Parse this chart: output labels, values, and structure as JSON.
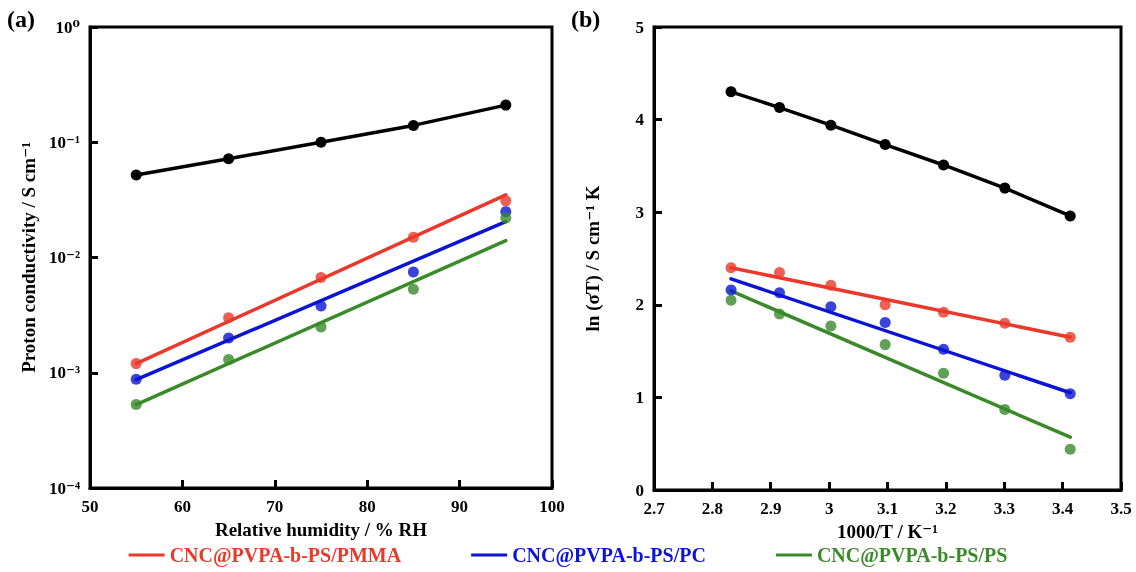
{
  "chart_data": [
    {
      "type": "scatter",
      "title": "(a)",
      "xlabel": "Relative humidity / % RH",
      "ylabel": "Proton conductivity / S cm⁻¹",
      "log": "y",
      "marker": "circle",
      "grid": false,
      "xlim": [
        50,
        100
      ],
      "xticks": [
        50,
        60,
        70,
        80,
        90,
        100
      ],
      "ylim": [
        0.0001,
        1
      ],
      "yticks": [
        {
          "value": 0.0001,
          "label": "10⁻⁴"
        },
        {
          "value": 0.001,
          "label": "10⁻³"
        },
        {
          "value": 0.01,
          "label": "10⁻²"
        },
        {
          "value": 0.1,
          "label": "10⁻¹"
        },
        {
          "value": 1,
          "label": "10⁰"
        }
      ],
      "x": [
        55,
        65,
        75,
        85,
        95
      ],
      "series": [
        {
          "type": "line",
          "color": "#000000",
          "values": [
            0.052,
            0.072,
            0.1,
            0.14,
            0.21
          ]
        },
        {
          "color": "#e8392b",
          "values": [
            0.0012,
            0.003,
            0.0067,
            0.015,
            0.031
          ]
        },
        {
          "type": "line",
          "marker": "none",
          "color": "#e8392b",
          "x": [
            55,
            95
          ],
          "values": [
            0.0012,
            0.035
          ]
        },
        {
          "color": "#0a14d2",
          "values": [
            0.00088,
            0.002,
            0.0038,
            0.0075,
            0.025
          ]
        },
        {
          "type": "line",
          "marker": "none",
          "color": "#0a14d2",
          "x": [
            55,
            95
          ],
          "values": [
            0.00087,
            0.0205
          ]
        },
        {
          "color": "#3a8a2a",
          "values": [
            0.00053,
            0.0013,
            0.0025,
            0.0053,
            0.022
          ]
        },
        {
          "type": "line",
          "marker": "none",
          "color": "#3a8a2a",
          "x": [
            55,
            95
          ],
          "values": [
            0.00053,
            0.014
          ]
        }
      ]
    },
    {
      "type": "scatter",
      "title": "(b)",
      "xlabel": "1000/T / K⁻¹",
      "ylabel": "ln (σT) / S cm⁻¹ K",
      "marker": "circle",
      "grid": false,
      "legend": "bottom",
      "xlim": [
        2.7,
        3.5
      ],
      "xticks": [
        2.7,
        2.8,
        2.9,
        3,
        3.1,
        3.2,
        3.3,
        3.4,
        3.5
      ],
      "ylim": [
        0,
        5
      ],
      "yticks": [
        0,
        1,
        2,
        3,
        4,
        5
      ],
      "x": [
        2.832,
        2.915,
        3.003,
        3.096,
        3.196,
        3.301,
        3.413
      ],
      "series": [
        {
          "type": "line",
          "color": "#000000",
          "values": [
            4.3,
            4.13,
            3.94,
            3.73,
            3.51,
            3.26,
            2.96
          ]
        },
        {
          "color": "#e8392b",
          "values": [
            2.4,
            2.35,
            2.21,
            2.0,
            1.92,
            1.8,
            1.65
          ]
        },
        {
          "name": "CNC@PVPA-b-PS/PMMA",
          "type": "line",
          "marker": "none",
          "color": "#e8392b",
          "x": [
            2.832,
            3.413
          ],
          "values": [
            2.4,
            1.65
          ]
        },
        {
          "color": "#0a14d2",
          "values": [
            2.16,
            2.13,
            1.98,
            1.81,
            1.52,
            1.24,
            1.04
          ]
        },
        {
          "name": "CNC@PVPA-b-PS/PC",
          "type": "line",
          "marker": "none",
          "color": "#0a14d2",
          "x": [
            2.832,
            3.413
          ],
          "values": [
            2.28,
            1.05
          ]
        },
        {
          "color": "#3a8a2a",
          "values": [
            2.05,
            1.9,
            1.77,
            1.57,
            1.26,
            0.87,
            0.44
          ]
        },
        {
          "name": "CNC@PVPA-b-PS/PS",
          "type": "line",
          "marker": "none",
          "color": "#3a8a2a",
          "x": [
            2.832,
            3.413
          ],
          "values": [
            2.15,
            0.57
          ]
        }
      ]
    }
  ]
}
